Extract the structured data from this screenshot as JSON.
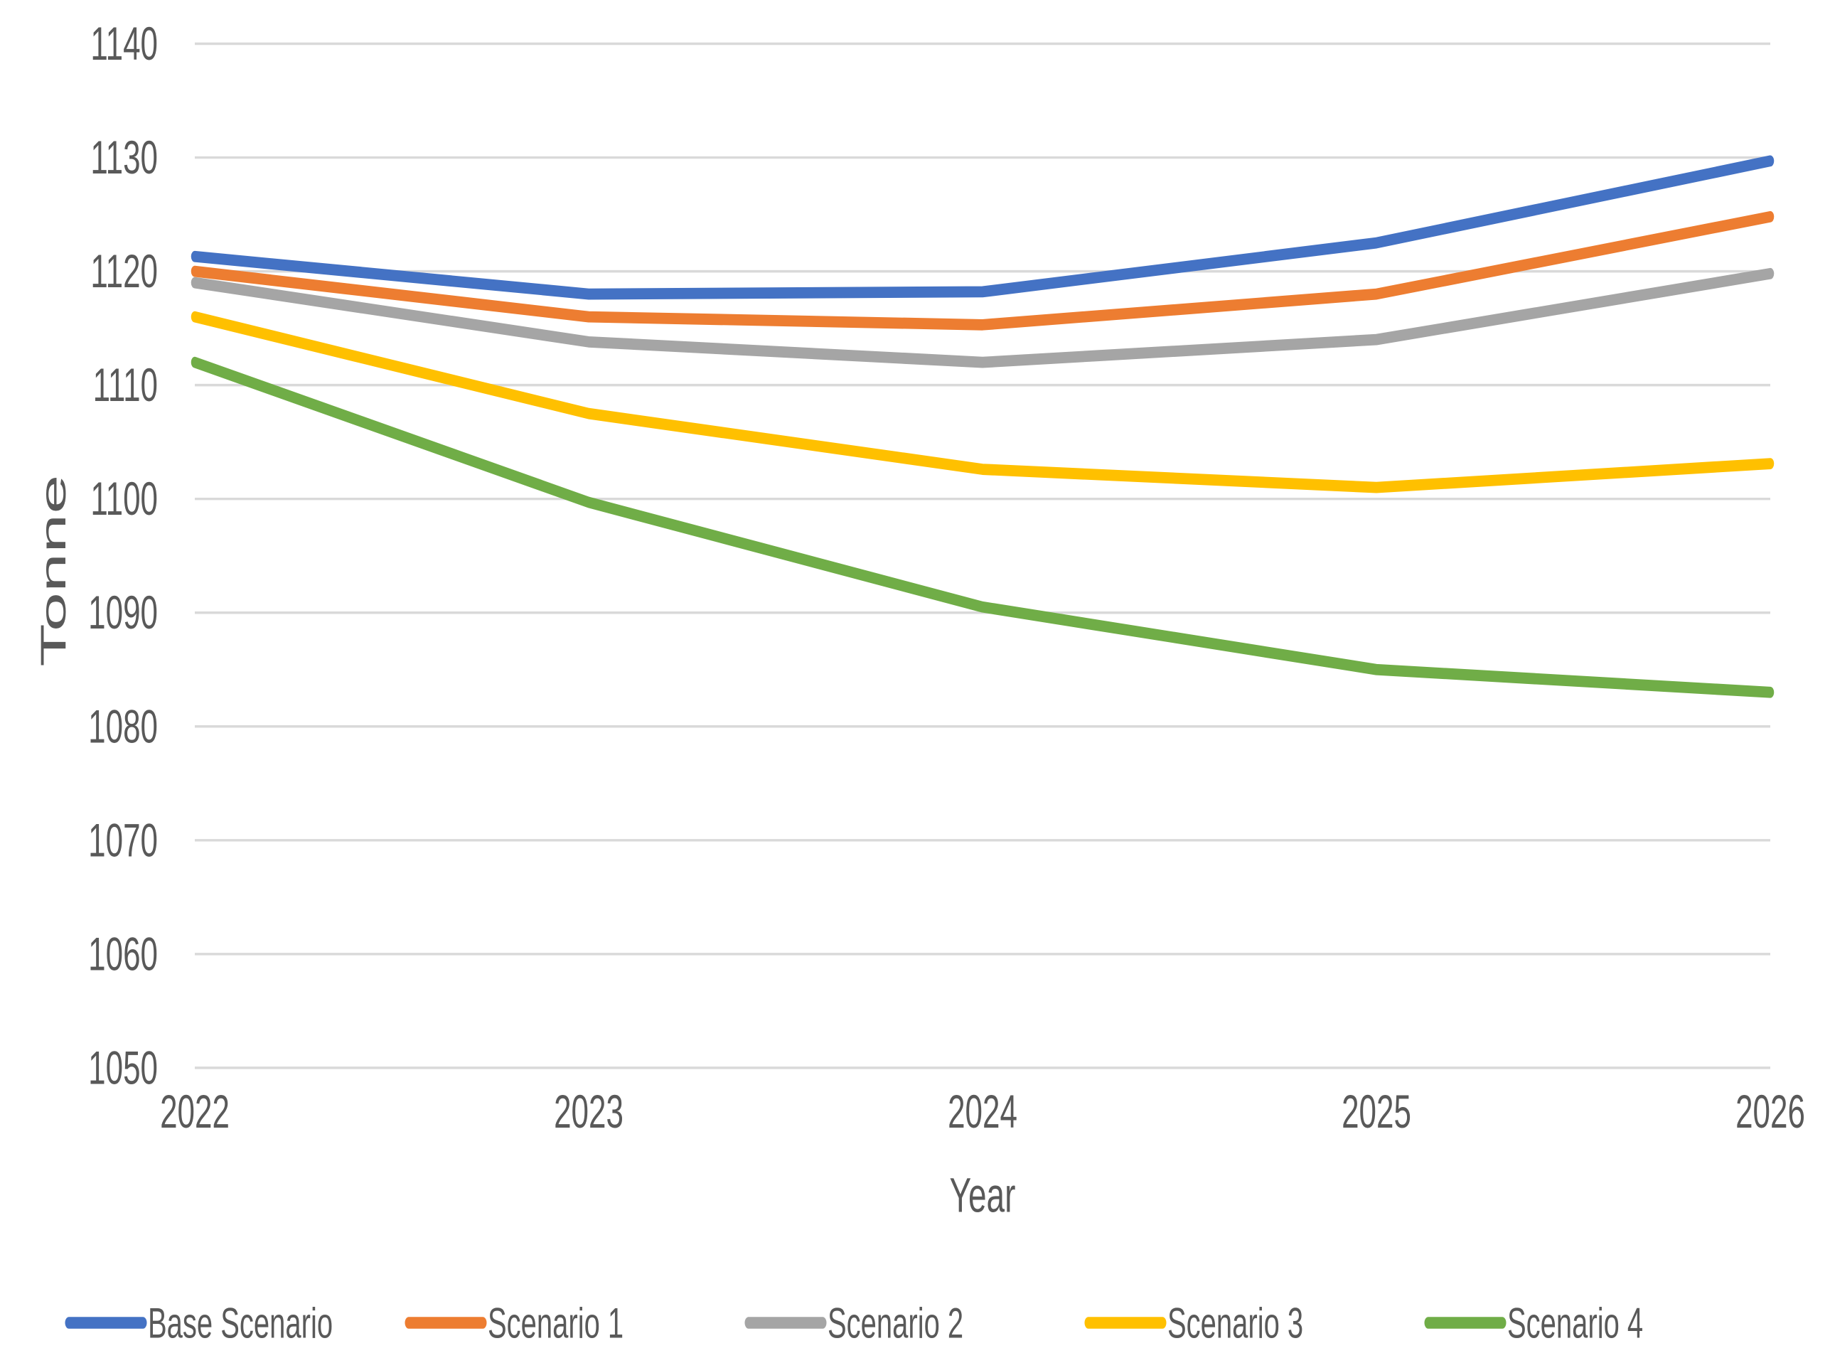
{
  "chart_data": {
    "type": "line",
    "title": "",
    "xlabel": "Year",
    "ylabel": "Tonne",
    "categories": [
      "2022",
      "2023",
      "2024",
      "2025",
      "2026"
    ],
    "ylim": [
      1050,
      1140
    ],
    "ytick_step": 10,
    "yticks": [
      1050,
      1060,
      1070,
      1080,
      1090,
      1100,
      1110,
      1120,
      1130,
      1140
    ],
    "grid": true,
    "legend_position": "bottom",
    "colors": {
      "axis_text": "#595959",
      "gridline": "#D9D9D9",
      "background": "#FFFFFF"
    },
    "series": [
      {
        "name": "Base Scenario",
        "color": "#4472C4",
        "values": [
          1121.3,
          1118.0,
          1118.2,
          1122.5,
          1129.7
        ]
      },
      {
        "name": "Scenario 1",
        "color": "#ED7D31",
        "values": [
          1120.0,
          1116.0,
          1115.3,
          1118.0,
          1124.8
        ]
      },
      {
        "name": "Scenario 2",
        "color": "#A5A5A5",
        "values": [
          1119.0,
          1113.8,
          1112.0,
          1114.0,
          1119.8
        ]
      },
      {
        "name": "Scenario 3",
        "color": "#FFC000",
        "values": [
          1116.0,
          1107.5,
          1102.6,
          1101.0,
          1103.1
        ]
      },
      {
        "name": "Scenario 4",
        "color": "#70AD47",
        "values": [
          1112.0,
          1099.7,
          1090.5,
          1085.0,
          1083.0
        ]
      }
    ]
  }
}
